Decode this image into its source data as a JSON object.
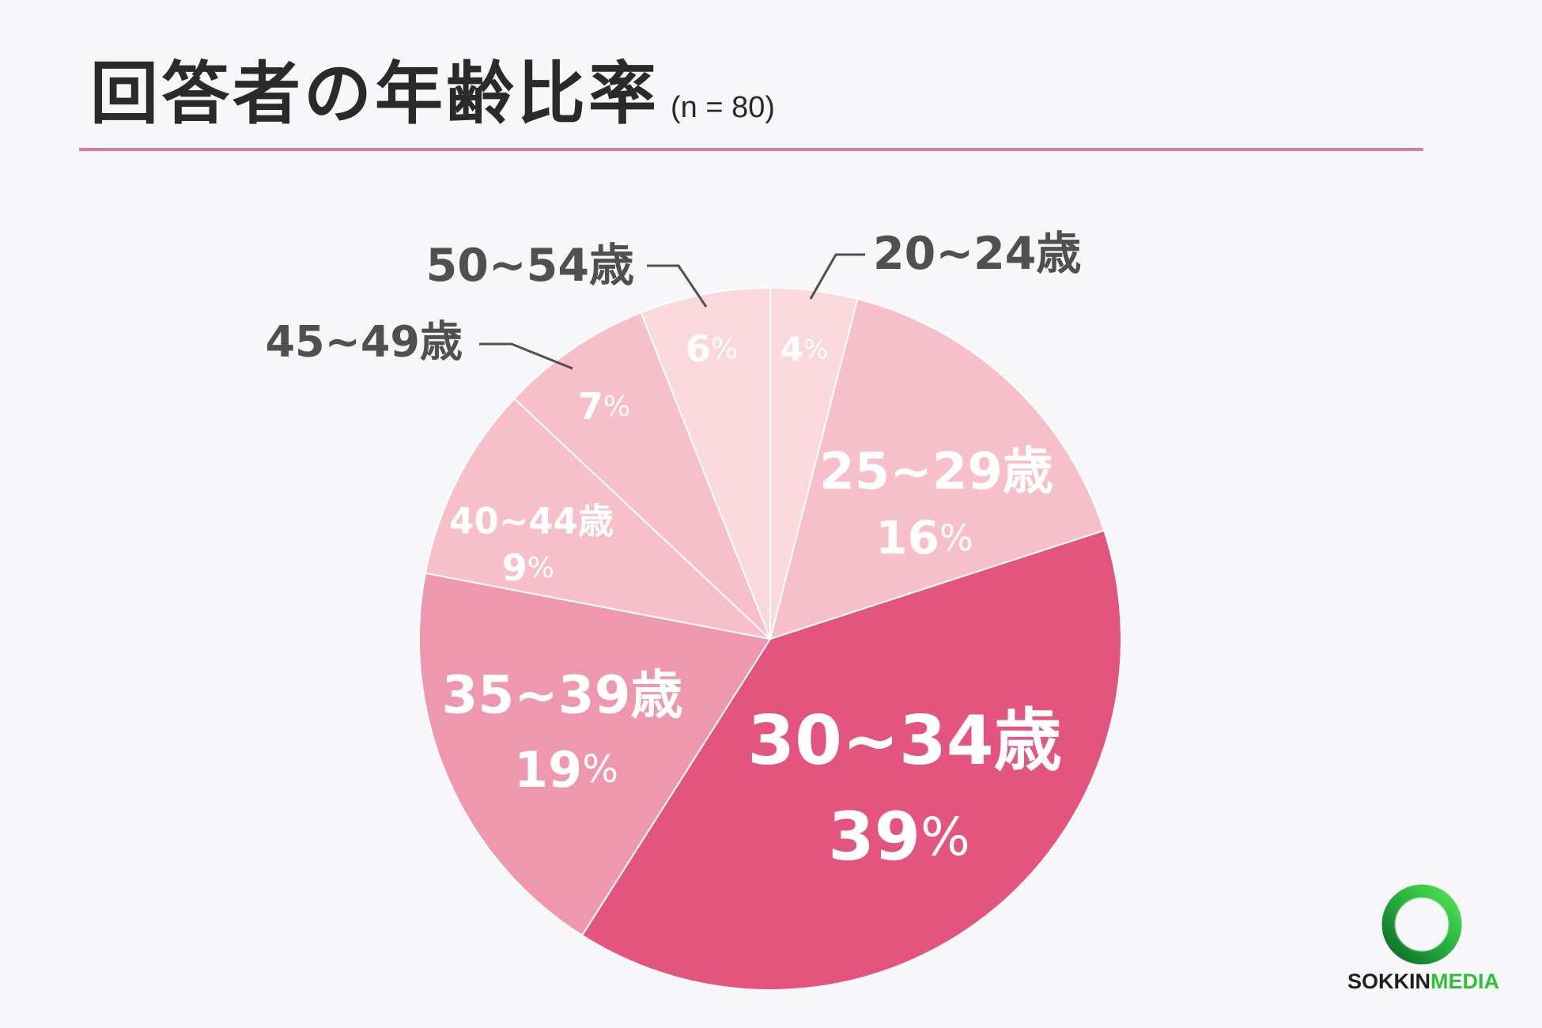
{
  "chart_data": {
    "type": "pie",
    "title": "回答者の年齢比率",
    "subtitle": "(n = 80)",
    "categories": [
      "20~24歳",
      "25~29歳",
      "30~34歳",
      "35~39歳",
      "40~44歳",
      "45~49歳",
      "50~54歳"
    ],
    "values": [
      4,
      16,
      39,
      19,
      9,
      7,
      6
    ],
    "unit": "%",
    "colors": [
      "#f9d8de",
      "#f7bfca",
      "#e3557e",
      "#ee97ae",
      "#f7bfca",
      "#f7bfca",
      "#f9d8de"
    ]
  },
  "theme": {
    "background": "#f7f7f9",
    "title_rule": "#e07b95",
    "label_inside": "#ffffff",
    "label_outside": "#505050",
    "slice_separator": "#ffffff"
  },
  "logo": {
    "primary": "SOKKIN",
    "accent": "MEDIA",
    "icon": "ring-icon",
    "ring_light": "#4fe353",
    "ring_dark": "#0b6b28"
  }
}
